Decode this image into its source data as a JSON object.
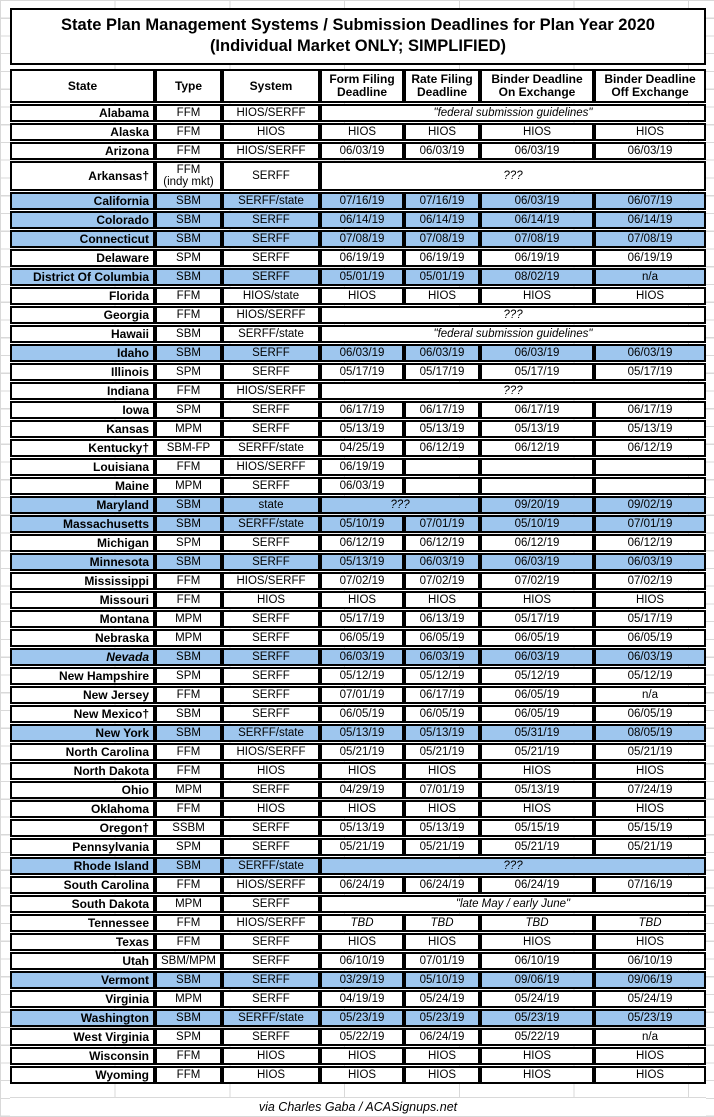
{
  "title": {
    "line1": "State Plan Management Systems / Submission Deadlines for Plan Year 2020",
    "line2": "(Individual Market ONLY; SIMPLIFIED)"
  },
  "colors": {
    "highlight_blue": "#9EC6EE",
    "border_black": "#000000",
    "gridline_gray": "#d9d9d9"
  },
  "table": {
    "headers": [
      {
        "lines": [
          "State"
        ]
      },
      {
        "lines": [
          "Type"
        ]
      },
      {
        "lines": [
          "System"
        ]
      },
      {
        "lines": [
          "Form Filing",
          "Deadline"
        ]
      },
      {
        "lines": [
          "Rate Filing",
          "Deadline"
        ]
      },
      {
        "lines": [
          "Binder Deadline",
          "On Exchange"
        ]
      },
      {
        "lines": [
          "Binder Deadline",
          "Off Exchange"
        ]
      }
    ],
    "rows": [
      {
        "state": "Alabama",
        "type": "FFM",
        "system": "HIOS/SERFF",
        "hl": false,
        "cells": [
          {
            "t": "\"federal submission guidelines\"",
            "span": 4,
            "i": true
          }
        ]
      },
      {
        "state": "Alaska",
        "type": "FFM",
        "system": "HIOS",
        "hl": false,
        "cells": [
          {
            "t": "HIOS"
          },
          {
            "t": "HIOS"
          },
          {
            "t": "HIOS"
          },
          {
            "t": "HIOS"
          }
        ]
      },
      {
        "state": "Arizona",
        "type": "FFM",
        "system": "HIOS/SERFF",
        "hl": false,
        "cells": [
          {
            "t": "06/03/19"
          },
          {
            "t": "06/03/19"
          },
          {
            "t": "06/03/19"
          },
          {
            "t": "06/03/19"
          }
        ]
      },
      {
        "state": "Arkansas†",
        "type": "FFM\n(indy mkt)",
        "system": "SERFF",
        "hl": false,
        "cells": [
          {
            "t": "???",
            "span": 4,
            "i": true
          }
        ]
      },
      {
        "state": "California",
        "type": "SBM",
        "system": "SERFF/state",
        "hl": true,
        "cells": [
          {
            "t": "07/16/19"
          },
          {
            "t": "07/16/19"
          },
          {
            "t": "06/03/19"
          },
          {
            "t": "06/07/19"
          }
        ]
      },
      {
        "state": "Colorado",
        "type": "SBM",
        "system": "SERFF",
        "hl": true,
        "cells": [
          {
            "t": "06/14/19"
          },
          {
            "t": "06/14/19"
          },
          {
            "t": "06/14/19"
          },
          {
            "t": "06/14/19"
          }
        ]
      },
      {
        "state": "Connecticut",
        "type": "SBM",
        "system": "SERFF",
        "hl": true,
        "cells": [
          {
            "t": "07/08/19"
          },
          {
            "t": "07/08/19"
          },
          {
            "t": "07/08/19"
          },
          {
            "t": "07/08/19"
          }
        ]
      },
      {
        "state": "Delaware",
        "type": "SPM",
        "system": "SERFF",
        "hl": false,
        "cells": [
          {
            "t": "06/19/19"
          },
          {
            "t": "06/19/19"
          },
          {
            "t": "06/19/19"
          },
          {
            "t": "06/19/19"
          }
        ]
      },
      {
        "state": "District Of Columbia",
        "type": "SBM",
        "system": "SERFF",
        "hl": true,
        "cells": [
          {
            "t": "05/01/19"
          },
          {
            "t": "05/01/19"
          },
          {
            "t": "08/02/19"
          },
          {
            "t": "n/a"
          }
        ]
      },
      {
        "state": "Florida",
        "type": "FFM",
        "system": "HIOS/state",
        "hl": false,
        "cells": [
          {
            "t": "HIOS"
          },
          {
            "t": "HIOS"
          },
          {
            "t": "HIOS"
          },
          {
            "t": "HIOS"
          }
        ]
      },
      {
        "state": "Georgia",
        "type": "FFM",
        "system": "HIOS/SERFF",
        "hl": false,
        "cells": [
          {
            "t": "???",
            "span": 4,
            "i": true
          }
        ]
      },
      {
        "state": "Hawaii",
        "type": "SBM",
        "system": "SERFF/state",
        "hl": false,
        "cells": [
          {
            "t": "\"federal submission guidelines\"",
            "span": 4,
            "i": true
          }
        ]
      },
      {
        "state": "Idaho",
        "type": "SBM",
        "system": "SERFF",
        "hl": true,
        "cells": [
          {
            "t": "06/03/19"
          },
          {
            "t": "06/03/19"
          },
          {
            "t": "06/03/19"
          },
          {
            "t": "06/03/19"
          }
        ]
      },
      {
        "state": "Illinois",
        "type": "SPM",
        "system": "SERFF",
        "hl": false,
        "cells": [
          {
            "t": "05/17/19"
          },
          {
            "t": "05/17/19"
          },
          {
            "t": "05/17/19"
          },
          {
            "t": "05/17/19"
          }
        ]
      },
      {
        "state": "Indiana",
        "type": "FFM",
        "system": "HIOS/SERFF",
        "hl": false,
        "cells": [
          {
            "t": "???",
            "span": 4,
            "i": true
          }
        ]
      },
      {
        "state": "Iowa",
        "type": "SPM",
        "system": "SERFF",
        "hl": false,
        "cells": [
          {
            "t": "06/17/19"
          },
          {
            "t": "06/17/19"
          },
          {
            "t": "06/17/19"
          },
          {
            "t": "06/17/19"
          }
        ]
      },
      {
        "state": "Kansas",
        "type": "MPM",
        "system": "SERFF",
        "hl": false,
        "cells": [
          {
            "t": "05/13/19"
          },
          {
            "t": "05/13/19"
          },
          {
            "t": "05/13/19"
          },
          {
            "t": "05/13/19"
          }
        ]
      },
      {
        "state": "Kentucky†",
        "type": "SBM-FP",
        "system": "SERFF/state",
        "hl": false,
        "cells": [
          {
            "t": "04/25/19"
          },
          {
            "t": "06/12/19"
          },
          {
            "t": "06/12/19"
          },
          {
            "t": "06/12/19"
          }
        ]
      },
      {
        "state": "Louisiana",
        "type": "FFM",
        "system": "HIOS/SERFF",
        "hl": false,
        "cells": [
          {
            "t": "06/19/19"
          },
          {
            "t": ""
          },
          {
            "t": ""
          },
          {
            "t": ""
          }
        ]
      },
      {
        "state": "Maine",
        "type": "MPM",
        "system": "SERFF",
        "hl": false,
        "cells": [
          {
            "t": "06/03/19"
          },
          {
            "t": ""
          },
          {
            "t": ""
          },
          {
            "t": ""
          }
        ]
      },
      {
        "state": "Maryland",
        "type": "SBM",
        "system": "state",
        "hl": true,
        "cells": [
          {
            "t": "???",
            "span": 2,
            "i": true
          },
          {
            "t": "09/20/19"
          },
          {
            "t": "09/02/19"
          }
        ]
      },
      {
        "state": "Massachusetts",
        "type": "SBM",
        "system": "SERFF/state",
        "hl": true,
        "cells": [
          {
            "t": "05/10/19"
          },
          {
            "t": "07/01/19"
          },
          {
            "t": "05/10/19"
          },
          {
            "t": "07/01/19"
          }
        ]
      },
      {
        "state": "Michigan",
        "type": "SPM",
        "system": "SERFF",
        "hl": false,
        "cells": [
          {
            "t": "06/12/19"
          },
          {
            "t": "06/12/19"
          },
          {
            "t": "06/12/19"
          },
          {
            "t": "06/12/19"
          }
        ]
      },
      {
        "state": "Minnesota",
        "type": "SBM",
        "system": "SERFF",
        "hl": true,
        "cells": [
          {
            "t": "05/13/19"
          },
          {
            "t": "06/03/19"
          },
          {
            "t": "06/03/19"
          },
          {
            "t": "06/03/19"
          }
        ]
      },
      {
        "state": "Mississippi",
        "type": "FFM",
        "system": "HIOS/SERFF",
        "hl": false,
        "cells": [
          {
            "t": "07/02/19"
          },
          {
            "t": "07/02/19"
          },
          {
            "t": "07/02/19"
          },
          {
            "t": "07/02/19"
          }
        ]
      },
      {
        "state": "Missouri",
        "type": "FFM",
        "system": "HIOS",
        "hl": false,
        "cells": [
          {
            "t": "HIOS"
          },
          {
            "t": "HIOS"
          },
          {
            "t": "HIOS"
          },
          {
            "t": "HIOS"
          }
        ]
      },
      {
        "state": "Montana",
        "type": "MPM",
        "system": "SERFF",
        "hl": false,
        "cells": [
          {
            "t": "05/17/19"
          },
          {
            "t": "06/13/19"
          },
          {
            "t": "05/17/19"
          },
          {
            "t": "05/17/19"
          }
        ]
      },
      {
        "state": "Nebraska",
        "type": "MPM",
        "system": "SERFF",
        "hl": false,
        "cells": [
          {
            "t": "06/05/19"
          },
          {
            "t": "06/05/19"
          },
          {
            "t": "06/05/19"
          },
          {
            "t": "06/05/19"
          }
        ]
      },
      {
        "state": "Nevada",
        "state_i": true,
        "type": "SBM",
        "system": "SERFF",
        "hl": true,
        "cells": [
          {
            "t": "06/03/19"
          },
          {
            "t": "06/03/19"
          },
          {
            "t": "06/03/19"
          },
          {
            "t": "06/03/19"
          }
        ]
      },
      {
        "state": "New Hampshire",
        "type": "SPM",
        "system": "SERFF",
        "hl": false,
        "cells": [
          {
            "t": "05/12/19"
          },
          {
            "t": "05/12/19"
          },
          {
            "t": "05/12/19"
          },
          {
            "t": "05/12/19"
          }
        ]
      },
      {
        "state": "New Jersey",
        "type": "FFM",
        "system": "SERFF",
        "hl": false,
        "cells": [
          {
            "t": "07/01/19"
          },
          {
            "t": "06/17/19"
          },
          {
            "t": "06/05/19"
          },
          {
            "t": "n/a"
          }
        ]
      },
      {
        "state": "New Mexico†",
        "type": "SBM",
        "system": "SERFF",
        "hl": false,
        "cells": [
          {
            "t": "06/05/19"
          },
          {
            "t": "06/05/19"
          },
          {
            "t": "06/05/19"
          },
          {
            "t": "06/05/19"
          }
        ]
      },
      {
        "state": "New York",
        "type": "SBM",
        "system": "SERFF/state",
        "hl": true,
        "cells": [
          {
            "t": "05/13/19"
          },
          {
            "t": "05/13/19"
          },
          {
            "t": "05/31/19"
          },
          {
            "t": "08/05/19"
          }
        ]
      },
      {
        "state": "North Carolina",
        "type": "FFM",
        "system": "HIOS/SERFF",
        "hl": false,
        "cells": [
          {
            "t": "05/21/19"
          },
          {
            "t": "05/21/19"
          },
          {
            "t": "05/21/19"
          },
          {
            "t": "05/21/19"
          }
        ]
      },
      {
        "state": "North Dakota",
        "type": "FFM",
        "system": "HIOS",
        "hl": false,
        "cells": [
          {
            "t": "HIOS"
          },
          {
            "t": "HIOS"
          },
          {
            "t": "HIOS"
          },
          {
            "t": "HIOS"
          }
        ]
      },
      {
        "state": "Ohio",
        "type": "MPM",
        "system": "SERFF",
        "hl": false,
        "cells": [
          {
            "t": "04/29/19"
          },
          {
            "t": "07/01/19"
          },
          {
            "t": "05/13/19"
          },
          {
            "t": "07/24/19"
          }
        ]
      },
      {
        "state": "Oklahoma",
        "type": "FFM",
        "system": "HIOS",
        "hl": false,
        "cells": [
          {
            "t": "HIOS"
          },
          {
            "t": "HIOS"
          },
          {
            "t": "HIOS"
          },
          {
            "t": "HIOS"
          }
        ]
      },
      {
        "state": "Oregon†",
        "type": "SSBM",
        "system": "SERFF",
        "hl": false,
        "cells": [
          {
            "t": "05/13/19"
          },
          {
            "t": "05/13/19"
          },
          {
            "t": "05/15/19"
          },
          {
            "t": "05/15/19"
          }
        ]
      },
      {
        "state": "Pennsylvania",
        "type": "SPM",
        "system": "SERFF",
        "hl": false,
        "cells": [
          {
            "t": "05/21/19"
          },
          {
            "t": "05/21/19"
          },
          {
            "t": "05/21/19"
          },
          {
            "t": "05/21/19"
          }
        ]
      },
      {
        "state": "Rhode Island",
        "type": "SBM",
        "system": "SERFF/state",
        "hl": true,
        "cells": [
          {
            "t": "???",
            "span": 4,
            "i": true
          }
        ]
      },
      {
        "state": "South Carolina",
        "type": "FFM",
        "system": "HIOS/SERFF",
        "hl": false,
        "cells": [
          {
            "t": "06/24/19"
          },
          {
            "t": "06/24/19"
          },
          {
            "t": "06/24/19"
          },
          {
            "t": "07/16/19"
          }
        ]
      },
      {
        "state": "South Dakota",
        "type": "MPM",
        "system": "SERFF",
        "hl": false,
        "cells": [
          {
            "t": "\"late May / early June\"",
            "span": 4,
            "i": true
          }
        ]
      },
      {
        "state": "Tennessee",
        "type": "FFM",
        "system": "HIOS/SERFF",
        "hl": false,
        "cells": [
          {
            "t": "TBD",
            "i": true
          },
          {
            "t": "TBD",
            "i": true
          },
          {
            "t": "TBD",
            "i": true
          },
          {
            "t": "TBD",
            "i": true
          }
        ]
      },
      {
        "state": "Texas",
        "type": "FFM",
        "system": "SERFF",
        "hl": false,
        "cells": [
          {
            "t": "HIOS"
          },
          {
            "t": "HIOS"
          },
          {
            "t": "HIOS"
          },
          {
            "t": "HIOS"
          }
        ]
      },
      {
        "state": "Utah",
        "type": "SBM/MPM",
        "system": "SERFF",
        "hl": false,
        "cells": [
          {
            "t": "06/10/19"
          },
          {
            "t": "07/01/19"
          },
          {
            "t": "06/10/19"
          },
          {
            "t": "06/10/19"
          }
        ]
      },
      {
        "state": "Vermont",
        "type": "SBM",
        "system": "SERFF",
        "hl": true,
        "cells": [
          {
            "t": "03/29/19"
          },
          {
            "t": "05/10/19"
          },
          {
            "t": "09/06/19"
          },
          {
            "t": "09/06/19"
          }
        ]
      },
      {
        "state": "Virginia",
        "type": "MPM",
        "system": "SERFF",
        "hl": false,
        "cells": [
          {
            "t": "04/19/19"
          },
          {
            "t": "05/24/19"
          },
          {
            "t": "05/24/19"
          },
          {
            "t": "05/24/19"
          }
        ]
      },
      {
        "state": "Washington",
        "type": "SBM",
        "system": "SERFF/state",
        "hl": true,
        "cells": [
          {
            "t": "05/23/19"
          },
          {
            "t": "05/23/19"
          },
          {
            "t": "05/23/19"
          },
          {
            "t": "05/23/19"
          }
        ]
      },
      {
        "state": "West Virginia",
        "type": "SPM",
        "system": "SERFF",
        "hl": false,
        "cells": [
          {
            "t": "05/22/19"
          },
          {
            "t": "06/24/19"
          },
          {
            "t": "05/22/19"
          },
          {
            "t": "n/a"
          }
        ]
      },
      {
        "state": "Wisconsin",
        "type": "FFM",
        "system": "HIOS",
        "hl": false,
        "cells": [
          {
            "t": "HIOS"
          },
          {
            "t": "HIOS"
          },
          {
            "t": "HIOS"
          },
          {
            "t": "HIOS"
          }
        ]
      },
      {
        "state": "Wyoming",
        "type": "FFM",
        "system": "HIOS",
        "hl": false,
        "cells": [
          {
            "t": "HIOS"
          },
          {
            "t": "HIOS"
          },
          {
            "t": "HIOS"
          },
          {
            "t": "HIOS"
          }
        ]
      }
    ]
  },
  "footer": {
    "credit": "via Charles Gaba / ACASignups.net"
  }
}
